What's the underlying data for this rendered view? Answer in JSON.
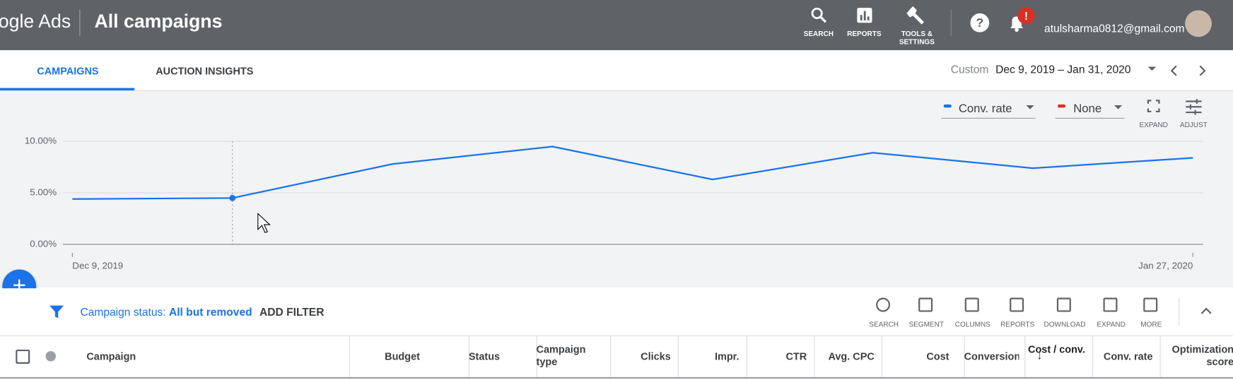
{
  "header": {
    "product": "ogle Ads",
    "title": "All campaigns",
    "nav": [
      "SEARCH",
      "REPORTS",
      "TOOLS & SETTINGS"
    ],
    "notification_badge": "!",
    "email": "atulsharma0812@gmail.com"
  },
  "tabs": [
    "CAMPAIGNS",
    "AUCTION INSIGHTS"
  ],
  "date_range": {
    "label": "Custom",
    "value": "Dec 9, 2019 – Jan 31, 2020"
  },
  "chart_controls": {
    "metrics": [
      "Conv. rate",
      "None"
    ],
    "metric_colors": [
      "#1a73e8",
      "#d93025"
    ],
    "actions": [
      "EXPAND",
      "ADJUST"
    ]
  },
  "chart_data": {
    "type": "line",
    "categories": [
      "Dec 9, 2019",
      null,
      null,
      null,
      null,
      null,
      null,
      "Jan 27, 2020"
    ],
    "series": [
      {
        "name": "Conv. rate",
        "color": "#1a73e8",
        "values": [
          4.4,
          4.5,
          7.8,
          9.5,
          6.3,
          8.9,
          7.4,
          8.4
        ]
      }
    ],
    "ylim": [
      0,
      10
    ],
    "yticks": [
      {
        "value": 0,
        "label": "0.00%"
      },
      {
        "value": 5,
        "label": "5.00%"
      },
      {
        "value": 10,
        "label": "10.00%"
      }
    ],
    "grid": true,
    "hover_index": 1
  },
  "filter": {
    "label": "Campaign status:",
    "value": "All but removed",
    "add": "ADD FILTER"
  },
  "toolbar": [
    "SEARCH",
    "SEGMENT",
    "COLUMNS",
    "REPORTS",
    "DOWNLOAD",
    "EXPAND",
    "MORE"
  ],
  "table": {
    "columns": [
      "Campaign",
      "Budget",
      "Status",
      "Campaign type",
      "Clicks",
      "Impr.",
      "CTR",
      "Avg. CPC",
      "Cost",
      "Conversions",
      "Cost / conv.",
      "Conv. rate",
      "Optimization score"
    ]
  }
}
